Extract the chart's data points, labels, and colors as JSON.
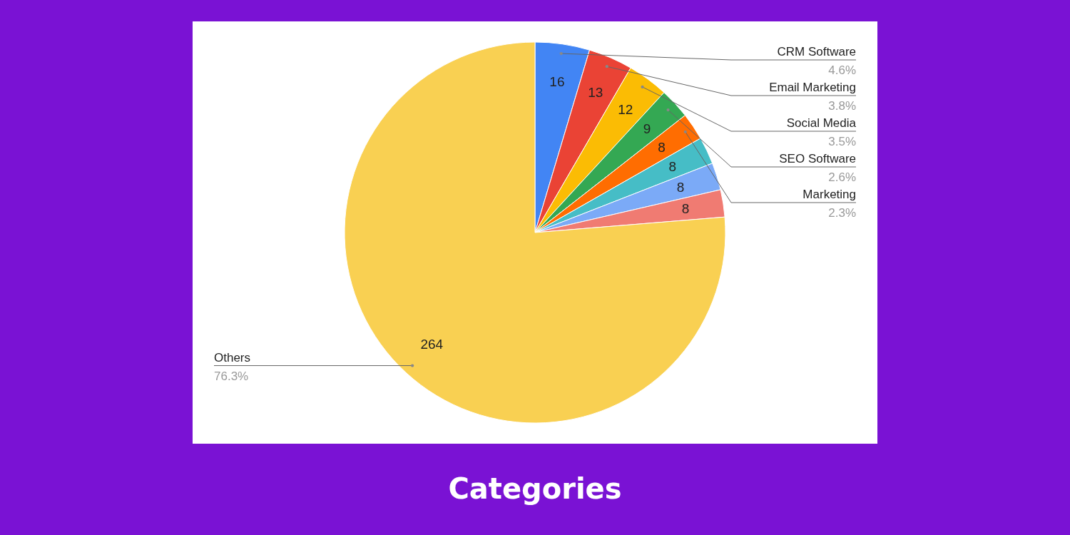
{
  "chart_data": {
    "type": "pie",
    "title": "Categories",
    "categories": [
      "CRM Software",
      "Email Marketing",
      "Social Media",
      "SEO Software",
      "Marketing",
      null,
      null,
      null,
      "Others"
    ],
    "values": [
      16,
      13,
      12,
      9,
      8,
      8,
      8,
      8,
      264
    ],
    "colors": [
      "#4285f4",
      "#ea4335",
      "#fbbc04",
      "#34a853",
      "#ff6d01",
      "#46bdc6",
      "#7baaf7",
      "#f07b72",
      "#f9d052"
    ],
    "data_labels": true,
    "annotations": [
      "4.6%",
      "3.8%",
      "3.5%",
      "2.6%",
      "2.3%",
      "76.3%"
    ]
  }
}
